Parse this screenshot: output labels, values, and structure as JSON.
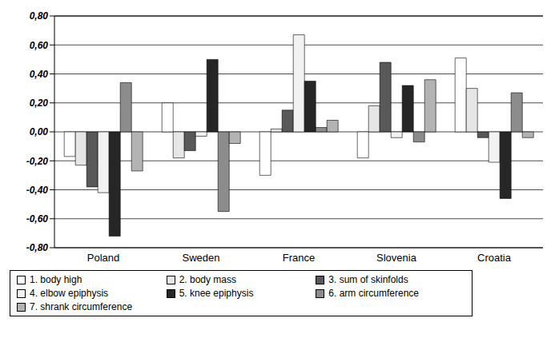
{
  "chart_data": {
    "type": "bar",
    "categories": [
      "Poland",
      "Sweden",
      "France",
      "Slovenia",
      "Croatia"
    ],
    "series": [
      {
        "name": "1. body high",
        "color": "#ffffff",
        "values": [
          -0.17,
          0.2,
          -0.3,
          -0.18,
          0.51
        ]
      },
      {
        "name": "2. body mass",
        "color": "#e6e6e6",
        "values": [
          -0.23,
          -0.18,
          0.02,
          0.18,
          0.3
        ]
      },
      {
        "name": "3. sum of skinfolds",
        "color": "#595959",
        "values": [
          -0.38,
          -0.13,
          0.15,
          0.48,
          -0.04
        ]
      },
      {
        "name": "4. elbow epiphysis",
        "color": "#f2f2f2",
        "values": [
          -0.42,
          -0.03,
          0.67,
          -0.04,
          -0.21
        ]
      },
      {
        "name": "5. knee epiphysis",
        "color": "#262626",
        "values": [
          -0.72,
          0.5,
          0.35,
          0.32,
          -0.46
        ]
      },
      {
        "name": "6. arm circumference",
        "color": "#8c8c8c",
        "values": [
          0.34,
          -0.55,
          0.03,
          -0.07,
          0.27
        ]
      },
      {
        "name": "7. shrank circumference",
        "color": "#b3b3b3",
        "values": [
          -0.27,
          -0.08,
          0.08,
          0.36,
          -0.04
        ]
      }
    ],
    "ylim": [
      -0.8,
      0.8
    ],
    "yticks": [
      {
        "value": -0.8,
        "label": "-0,80"
      },
      {
        "value": -0.6,
        "label": "-0,60"
      },
      {
        "value": -0.4,
        "label": "-0,40"
      },
      {
        "value": -0.2,
        "label": "-0,20"
      },
      {
        "value": 0,
        "label": "0,00"
      },
      {
        "value": 0.2,
        "label": "0,20"
      },
      {
        "value": 0.4,
        "label": "0,40"
      },
      {
        "value": 0.6,
        "label": "0,60"
      },
      {
        "value": 0.8,
        "label": "0,80"
      }
    ],
    "grid": true,
    "legend": "bottom"
  }
}
